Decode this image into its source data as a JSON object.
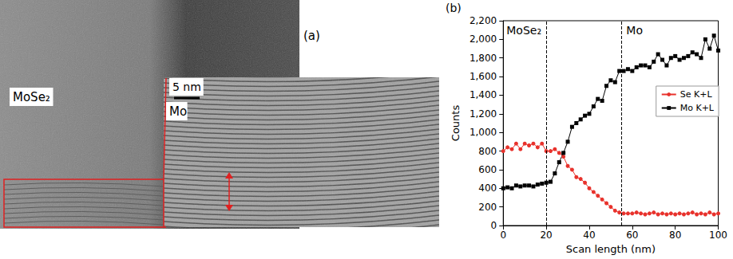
{
  "micrograph": {
    "panel_label": "(a)",
    "labels": [
      "MoSe₂",
      "Mo"
    ],
    "scale_bar": "5 nm"
  },
  "chart_data": {
    "type": "line",
    "panel_label": "(b)",
    "x_label": "Scan length (nm)",
    "y_label": "Counts",
    "x": [
      0,
      2,
      4,
      6,
      8,
      10,
      12,
      14,
      16,
      18,
      20,
      22,
      24,
      26,
      28,
      30,
      32,
      34,
      36,
      38,
      40,
      42,
      44,
      46,
      48,
      50,
      52,
      54,
      56,
      58,
      60,
      62,
      64,
      66,
      68,
      70,
      72,
      74,
      76,
      78,
      80,
      82,
      84,
      86,
      88,
      90,
      92,
      94,
      96,
      98,
      100
    ],
    "series": [
      {
        "name": "Se K+L",
        "color": "#e8322c",
        "marker": "circle",
        "values": [
          800,
          840,
          820,
          880,
          820,
          880,
          860,
          880,
          840,
          880,
          800,
          800,
          820,
          780,
          740,
          640,
          600,
          520,
          500,
          460,
          400,
          360,
          320,
          280,
          240,
          200,
          160,
          140,
          130,
          130,
          130,
          140,
          130,
          120,
          130,
          140,
          120,
          130,
          120,
          130,
          120,
          130,
          120,
          130,
          140,
          120,
          130,
          120,
          140,
          120,
          130
        ]
      },
      {
        "name": "Mo K+L",
        "color": "#000000",
        "marker": "square",
        "values": [
          400,
          410,
          400,
          430,
          420,
          430,
          430,
          420,
          440,
          450,
          460,
          470,
          560,
          680,
          780,
          900,
          1060,
          1100,
          1140,
          1180,
          1200,
          1280,
          1360,
          1340,
          1500,
          1560,
          1540,
          1660,
          1660,
          1680,
          1660,
          1700,
          1720,
          1720,
          1700,
          1760,
          1840,
          1780,
          1720,
          1800,
          1820,
          1780,
          1800,
          1820,
          1860,
          1840,
          1800,
          2000,
          1900,
          2040,
          1880
        ]
      }
    ],
    "xlim": [
      0,
      100
    ],
    "xticks": [
      0,
      20,
      40,
      60,
      80,
      100
    ],
    "ylim": [
      0,
      2200
    ],
    "yticks": [
      0,
      200,
      400,
      600,
      800,
      1000,
      1200,
      1400,
      1600,
      1800,
      2000,
      2200
    ],
    "grid": false,
    "legend": "right",
    "boundaries": [
      20,
      55
    ],
    "region_labels": [
      "MoSe₂",
      "Mo"
    ]
  }
}
